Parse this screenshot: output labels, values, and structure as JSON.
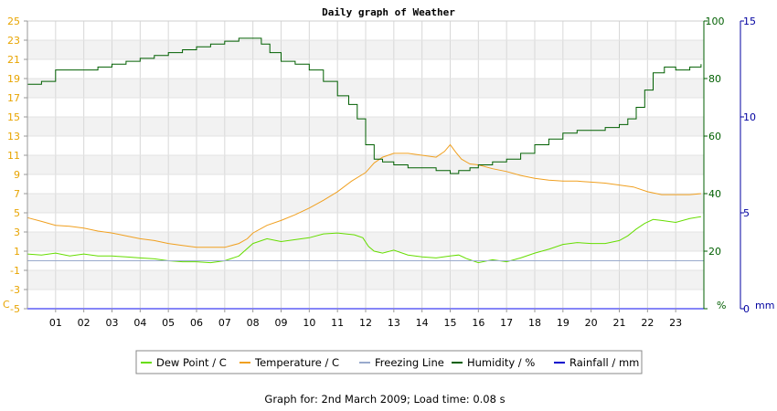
{
  "chart_data": {
    "type": "line",
    "title": "Daily graph of Weather",
    "footer": "Graph for: 2nd March 2009; Load time: 0.08 s",
    "x_tick_labels": [
      "01",
      "02",
      "03",
      "04",
      "05",
      "06",
      "07",
      "08",
      "09",
      "10",
      "11",
      "12",
      "13",
      "14",
      "15",
      "16",
      "17",
      "18",
      "19",
      "20",
      "21",
      "22",
      "23"
    ],
    "xlim": [
      0,
      24
    ],
    "left_axis": {
      "unit_label": "C",
      "ylim": [
        -5,
        25
      ],
      "ticks": [
        -5,
        -3,
        -1,
        1,
        3,
        5,
        7,
        9,
        11,
        13,
        15,
        17,
        19,
        21,
        23,
        25
      ],
      "color": "#e8a400"
    },
    "right_axis_1": {
      "unit_label": "%",
      "ylim": [
        0,
        100
      ],
      "ticks": [
        0,
        20,
        40,
        60,
        80,
        100
      ],
      "color": "#005f00"
    },
    "right_axis_2": {
      "unit_label": "mm",
      "ylim": [
        0,
        15
      ],
      "ticks": [
        0,
        5,
        10,
        15
      ],
      "color": "#0000a0"
    },
    "grid": true,
    "legend_position": "bottom",
    "series": [
      {
        "name": "Dew Point / C",
        "axis": "left",
        "color": "#66dd00",
        "x": [
          0,
          0.5,
          1,
          1.5,
          2,
          2.5,
          3,
          3.5,
          4,
          4.5,
          5,
          5.5,
          6,
          6.5,
          7,
          7.5,
          8,
          8.5,
          9,
          9.5,
          10,
          10.5,
          11,
          11.3,
          11.6,
          11.9,
          12.1,
          12.3,
          12.6,
          13,
          13.5,
          14,
          14.5,
          15,
          15.3,
          15.6,
          16,
          16.5,
          17,
          17.5,
          18,
          18.5,
          19,
          19.5,
          20,
          20.5,
          21,
          21.3,
          21.6,
          21.9,
          22.2,
          22.5,
          23,
          23.5,
          23.9
        ],
        "y": [
          0.7,
          0.6,
          0.8,
          0.5,
          0.7,
          0.5,
          0.5,
          0.4,
          0.3,
          0.2,
          0.0,
          -0.1,
          -0.1,
          -0.2,
          0.0,
          0.5,
          1.8,
          2.3,
          2.0,
          2.2,
          2.4,
          2.8,
          2.9,
          2.8,
          2.7,
          2.4,
          1.5,
          1.0,
          0.8,
          1.1,
          0.6,
          0.4,
          0.3,
          0.5,
          0.6,
          0.2,
          -0.2,
          0.1,
          -0.1,
          0.3,
          0.8,
          1.2,
          1.7,
          1.9,
          1.8,
          1.8,
          2.1,
          2.6,
          3.3,
          3.9,
          4.3,
          4.2,
          4.0,
          4.4,
          4.6
        ]
      },
      {
        "name": "Temperature / C",
        "axis": "left",
        "color": "#f0a020",
        "x": [
          0,
          0.5,
          1,
          1.5,
          2,
          2.5,
          3,
          3.5,
          4,
          4.5,
          5,
          5.5,
          6,
          6.5,
          7,
          7.5,
          7.8,
          8,
          8.5,
          9,
          9.5,
          10,
          10.5,
          11,
          11.5,
          12,
          12.3,
          12.6,
          13,
          13.5,
          14,
          14.5,
          14.8,
          15,
          15.2,
          15.4,
          15.7,
          16,
          16.5,
          17,
          17.5,
          18,
          18.5,
          19,
          19.5,
          20,
          20.5,
          21,
          21.5,
          22,
          22.5,
          23,
          23.5,
          23.9
        ],
        "y": [
          4.5,
          4.1,
          3.7,
          3.6,
          3.4,
          3.1,
          2.9,
          2.6,
          2.3,
          2.1,
          1.8,
          1.6,
          1.4,
          1.4,
          1.4,
          1.8,
          2.3,
          2.9,
          3.7,
          4.2,
          4.8,
          5.5,
          6.3,
          7.2,
          8.3,
          9.2,
          10.2,
          10.8,
          11.2,
          11.2,
          11.0,
          10.8,
          11.4,
          12.1,
          11.3,
          10.6,
          10.1,
          10.0,
          9.6,
          9.3,
          8.9,
          8.6,
          8.4,
          8.3,
          8.3,
          8.2,
          8.1,
          7.9,
          7.7,
          7.2,
          6.9,
          6.9,
          6.9,
          7.0
        ]
      },
      {
        "name": "Freezing Line",
        "axis": "left",
        "color": "#99aacc",
        "x": [
          0,
          24
        ],
        "y": [
          0,
          0
        ]
      },
      {
        "name": "Humidity / %",
        "axis": "right_1",
        "color": "#005f00",
        "x": [
          0,
          0.5,
          1,
          1.5,
          2,
          2.5,
          3,
          3.5,
          4,
          4.5,
          5,
          5.5,
          6,
          6.5,
          7,
          7.5,
          8,
          8.3,
          8.6,
          9,
          9.5,
          10,
          10.5,
          11,
          11.4,
          11.7,
          12,
          12.3,
          12.6,
          13,
          13.5,
          14,
          14.5,
          15,
          15.3,
          15.7,
          16,
          16.5,
          17,
          17.5,
          18,
          18.5,
          19,
          19.5,
          20,
          20.5,
          21,
          21.3,
          21.6,
          21.9,
          22.2,
          22.6,
          23,
          23.5,
          23.9
        ],
        "y": [
          78,
          79,
          83,
          83,
          83,
          84,
          85,
          86,
          87,
          88,
          89,
          90,
          91,
          92,
          93,
          94,
          94,
          92,
          89,
          86,
          85,
          83,
          79,
          74,
          71,
          66,
          57,
          52,
          51,
          50,
          49,
          49,
          48,
          47,
          48,
          49,
          50,
          51,
          52,
          54,
          57,
          59,
          61,
          62,
          62,
          63,
          64,
          66,
          70,
          76,
          82,
          84,
          83,
          84,
          85
        ]
      },
      {
        "name": "Rainfall / mm",
        "axis": "right_2",
        "color": "#0000cc",
        "x": [
          0,
          24
        ],
        "y": [
          0,
          0
        ]
      }
    ]
  }
}
